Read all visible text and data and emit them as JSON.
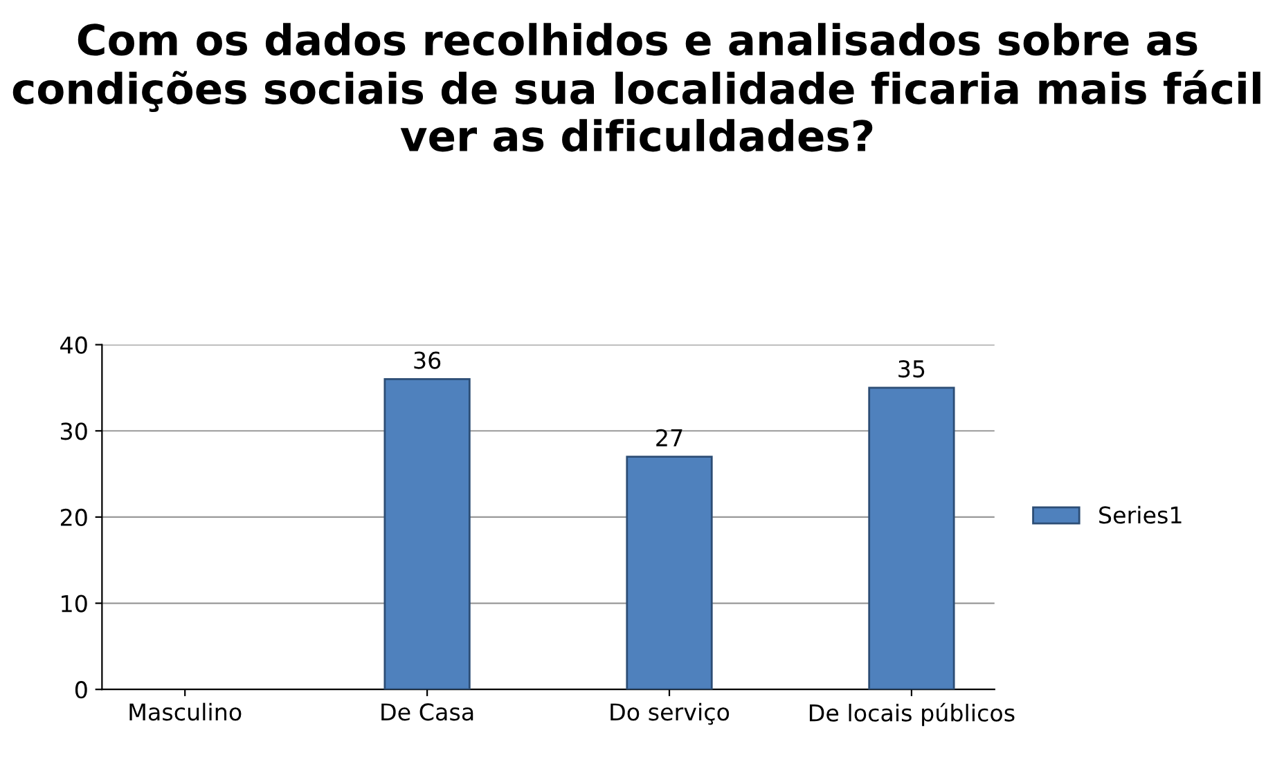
{
  "chart_data": {
    "type": "bar",
    "title": "Com os dados recolhidos e analisados sobre as condições sociais de sua localidade ficaria mais fácil ver as dificuldades?",
    "categories": [
      "Masculino",
      "De Casa",
      "Do serviço",
      "De locais públicos"
    ],
    "series": [
      {
        "name": "Series1",
        "color": "#4f81bd",
        "values": [
          null,
          36,
          27,
          35
        ]
      }
    ],
    "ylim": [
      0,
      40
    ],
    "yticks": [
      0,
      10,
      20,
      30,
      40
    ],
    "grid": "y",
    "legend": "right",
    "data_labels": true
  }
}
